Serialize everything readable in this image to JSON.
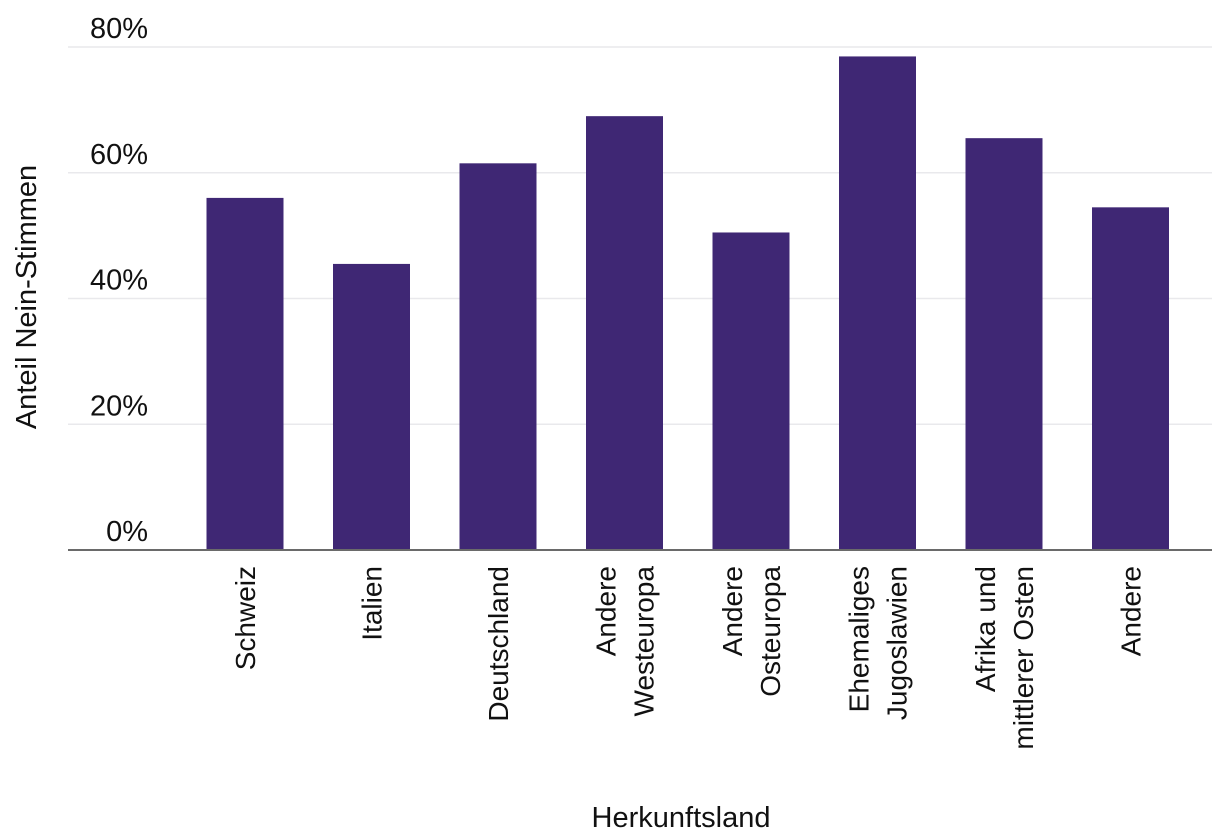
{
  "chart_data": {
    "type": "bar",
    "categories": [
      "Schweiz",
      "Italien",
      "Deutschland",
      "Andere Westeuropa",
      "Andere Osteuropa",
      "Ehemaliges Jugoslawien",
      "Afrika und mittlerer Osten",
      "Andere"
    ],
    "category_lines": [
      [
        "Schweiz"
      ],
      [
        "Italien"
      ],
      [
        "Deutschland"
      ],
      [
        "Andere",
        "Westeuropa"
      ],
      [
        "Andere",
        "Osteuropa"
      ],
      [
        "Ehemaliges",
        "Jugoslawien"
      ],
      [
        "Afrika und",
        "mittlerer Osten"
      ],
      [
        "Andere"
      ]
    ],
    "values": [
      56,
      45.5,
      61.5,
      69,
      50.5,
      78.5,
      65.5,
      54.5
    ],
    "value_unit": "%",
    "title": "",
    "xlabel": "Herkunftsland",
    "ylabel": "Anteil Nein-Stimmen",
    "ylim": [
      0,
      80
    ],
    "yticks": [
      0,
      20,
      40,
      60,
      80
    ],
    "ytick_labels": [
      "0%",
      "20%",
      "40%",
      "60%",
      "80%"
    ],
    "grid": true,
    "legend": "none",
    "bar_color": "#3f2774"
  }
}
